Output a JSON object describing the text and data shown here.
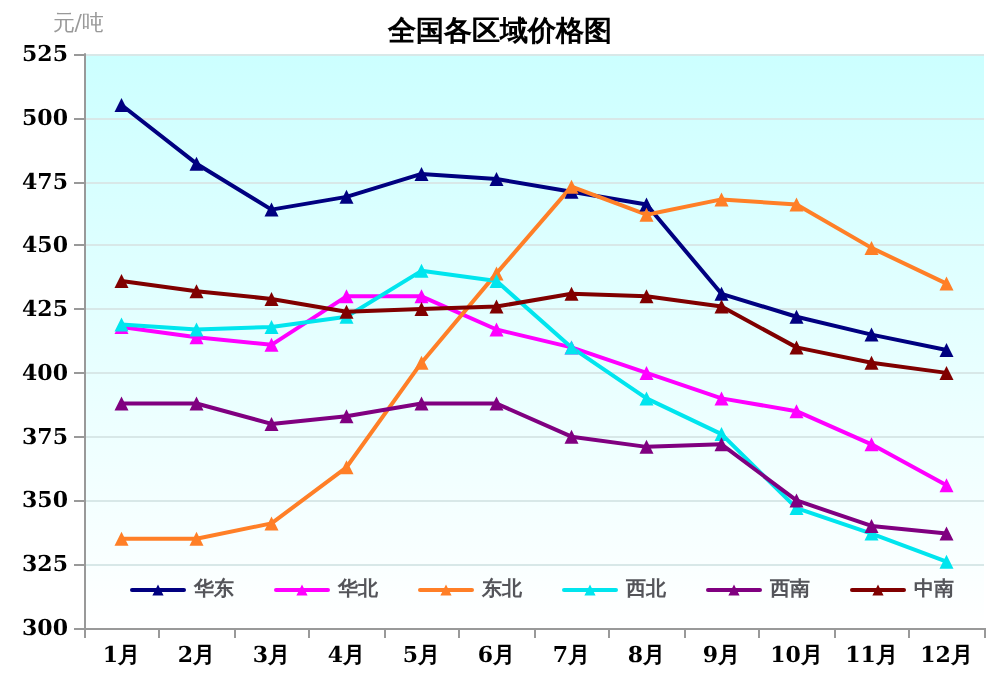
{
  "chart_data": {
    "type": "line",
    "title": "全国各区域价格图",
    "ylabel": "元/吨",
    "categories": [
      "1月",
      "2月",
      "3月",
      "4月",
      "5月",
      "6月",
      "7月",
      "8月",
      "9月",
      "10月",
      "11月",
      "12月"
    ],
    "series": [
      {
        "name": "华东",
        "color": "#000080",
        "values": [
          505,
          482,
          464,
          469,
          478,
          476,
          471,
          466,
          431,
          422,
          415,
          409
        ]
      },
      {
        "name": "华北",
        "color": "#ff00ff",
        "values": [
          418,
          414,
          411,
          430,
          430,
          417,
          410,
          400,
          390,
          385,
          372,
          356
        ]
      },
      {
        "name": "东北",
        "color": "#ff7f27",
        "values": [
          335,
          335,
          341,
          363,
          404,
          439,
          473,
          462,
          468,
          466,
          449,
          435
        ]
      },
      {
        "name": "西北",
        "color": "#00e5ee",
        "values": [
          419,
          417,
          418,
          422,
          440,
          436,
          410,
          390,
          376,
          347,
          337,
          326
        ]
      },
      {
        "name": "西南",
        "color": "#800080",
        "values": [
          388,
          388,
          380,
          383,
          388,
          388,
          375,
          371,
          372,
          350,
          340,
          337
        ]
      },
      {
        "name": "中南",
        "color": "#800000",
        "values": [
          436,
          432,
          429,
          424,
          425,
          426,
          431,
          430,
          426,
          410,
          404,
          400
        ]
      }
    ],
    "ylim": [
      300,
      525
    ],
    "yticks": [
      300,
      325,
      350,
      375,
      400,
      425,
      450,
      475,
      500,
      525
    ],
    "grid": "y",
    "legend": "bottom",
    "marker": "triangle",
    "line_style": "solid"
  }
}
